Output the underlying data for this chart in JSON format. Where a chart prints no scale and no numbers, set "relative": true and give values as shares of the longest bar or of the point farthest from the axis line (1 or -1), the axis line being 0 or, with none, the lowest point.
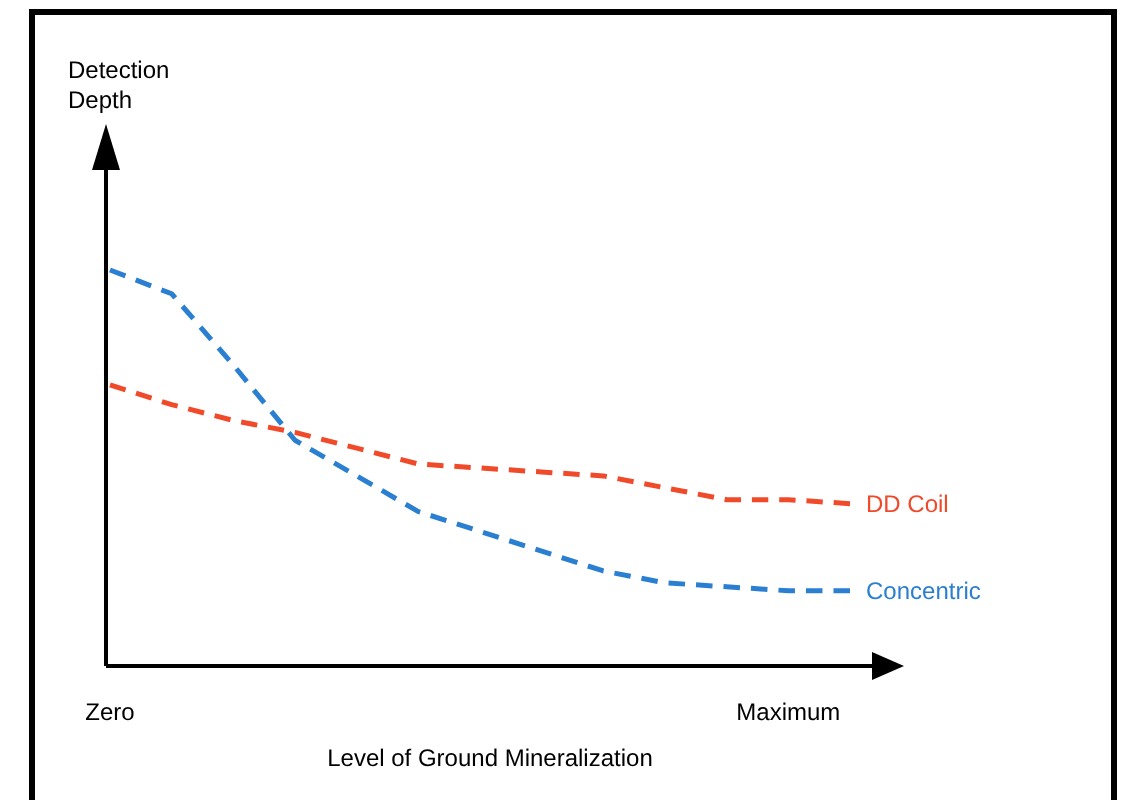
{
  "chart_data": {
    "type": "line",
    "relative": true,
    "xlabel": "Level of Ground Mineralization",
    "annotations": [
      "Detection Depth"
    ],
    "categories": [
      "Zero",
      null,
      null,
      null,
      null,
      null,
      null,
      null,
      null,
      null,
      null,
      "Maximum",
      null
    ],
    "legend": false,
    "grid": false,
    "marker": "none",
    "line_style": "dashed",
    "series": [
      {
        "name": "DD Coil",
        "color": "#f04a2a",
        "values": [
          0.71,
          0.66,
          0.62,
          0.59,
          0.55,
          0.51,
          0.5,
          0.49,
          0.48,
          0.45,
          0.42,
          0.42,
          0.41
        ]
      },
      {
        "name": "Concentric",
        "color": "#2a7fd0",
        "values": [
          1,
          0.94,
          0.76,
          0.57,
          0.48,
          0.39,
          0.34,
          0.29,
          0.24,
          0.21,
          0.2,
          0.19,
          0.19
        ]
      }
    ]
  }
}
